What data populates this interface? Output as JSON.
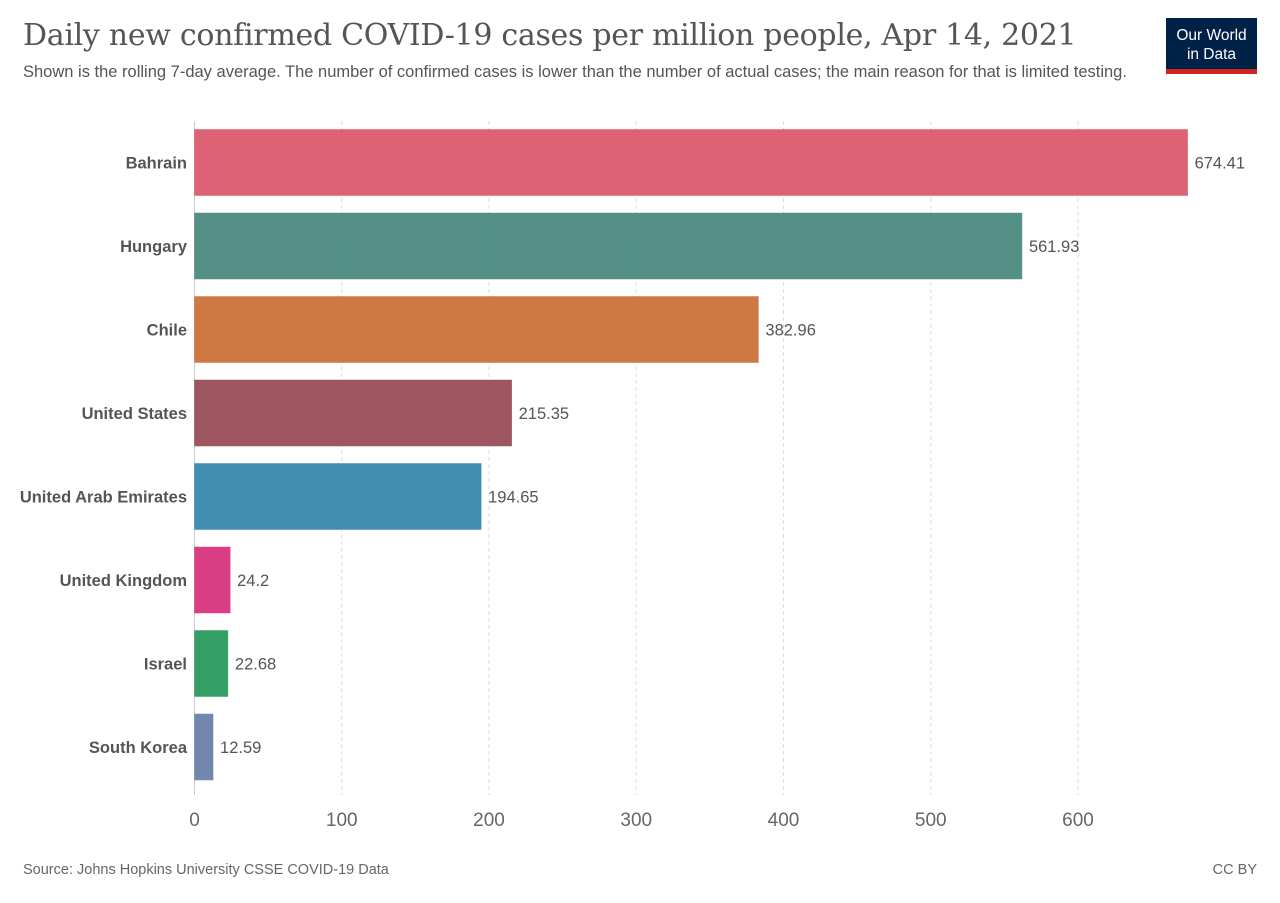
{
  "title": "Daily new confirmed COVID-19 cases per million people, Apr 14, 2021",
  "subtitle": "Shown is the rolling 7-day average. The number of confirmed cases is lower than the number of actual cases; the main reason for that is limited testing.",
  "logo": {
    "line1": "Our World",
    "line2": "in Data"
  },
  "footer": {
    "source": "Source: Johns Hopkins University CSSE COVID-19 Data",
    "license": "CC BY"
  },
  "chart_data": {
    "type": "bar",
    "orientation": "horizontal",
    "title": "Daily new confirmed COVID-19 cases per million people, Apr 14, 2021",
    "xlabel": "",
    "ylabel": "",
    "xlim": [
      0,
      700
    ],
    "xticks": [
      0,
      100,
      200,
      300,
      400,
      500,
      600
    ],
    "grid": true,
    "categories": [
      "Bahrain",
      "Hungary",
      "Chile",
      "United States",
      "United Arab Emirates",
      "United Kingdom",
      "Israel",
      "South Korea"
    ],
    "values": [
      674.41,
      561.93,
      382.96,
      215.35,
      194.65,
      24.2,
      22.68,
      12.59
    ],
    "value_labels": [
      "674.41",
      "561.93",
      "382.96",
      "215.35",
      "194.65",
      "24.2",
      "22.68",
      "12.59"
    ],
    "colors": [
      "#dc5a6c",
      "#4b8b7f",
      "#cc7139",
      "#984e57",
      "#368aad",
      "#d7347f",
      "#2b9a5e",
      "#6b81aa"
    ]
  }
}
